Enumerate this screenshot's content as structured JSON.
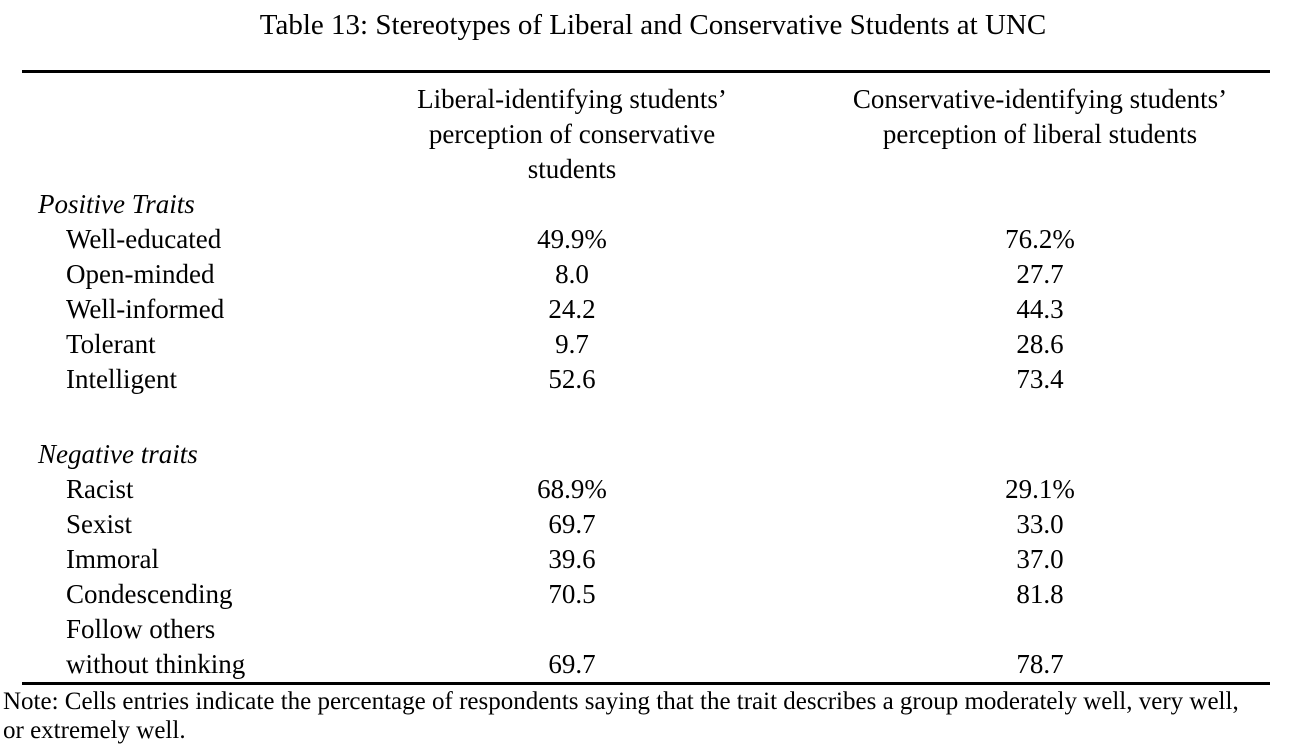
{
  "title": "Table 13: Stereotypes of Liberal and Conservative Students at UNC",
  "header": {
    "col1_lines": [
      "Liberal-identifying students’",
      "perception of conservative",
      "students"
    ],
    "col2_lines": [
      "Conservative-identifying students’",
      "perception of liberal students"
    ]
  },
  "rows": [
    {
      "label": "Positive Traits",
      "c1": "",
      "c2": ""
    },
    {
      "label": "Well-educated",
      "c1": "49.9%",
      "c2": "76.2%"
    },
    {
      "label": "Open-minded",
      "c1": "8.0",
      "c2": "27.7"
    },
    {
      "label": "Well-informed",
      "c1": "24.2",
      "c2": "44.3"
    },
    {
      "label": "Tolerant",
      "c1": "9.7",
      "c2": "28.6"
    },
    {
      "label": "Intelligent",
      "c1": "52.6",
      "c2": "73.4"
    },
    {
      "label": "Negative traits",
      "c1": "",
      "c2": ""
    },
    {
      "label": "Racist",
      "c1": "68.9%",
      "c2": "29.1%"
    },
    {
      "label": "Sexist",
      "c1": "69.7",
      "c2": "33.0"
    },
    {
      "label": "Immoral",
      "c1": "39.6",
      "c2": "37.0"
    },
    {
      "label": "Condescending",
      "c1": "70.5",
      "c2": "81.8"
    },
    {
      "label": "Follow others",
      "c1": "",
      "c2": ""
    },
    {
      "label": "without thinking",
      "c1": "69.7",
      "c2": "78.7"
    }
  ],
  "note_lines": [
    "Note: Cells entries indicate the percentage of respondents saying that the trait describes a group moderately well, very well,",
    "or extremely well."
  ]
}
